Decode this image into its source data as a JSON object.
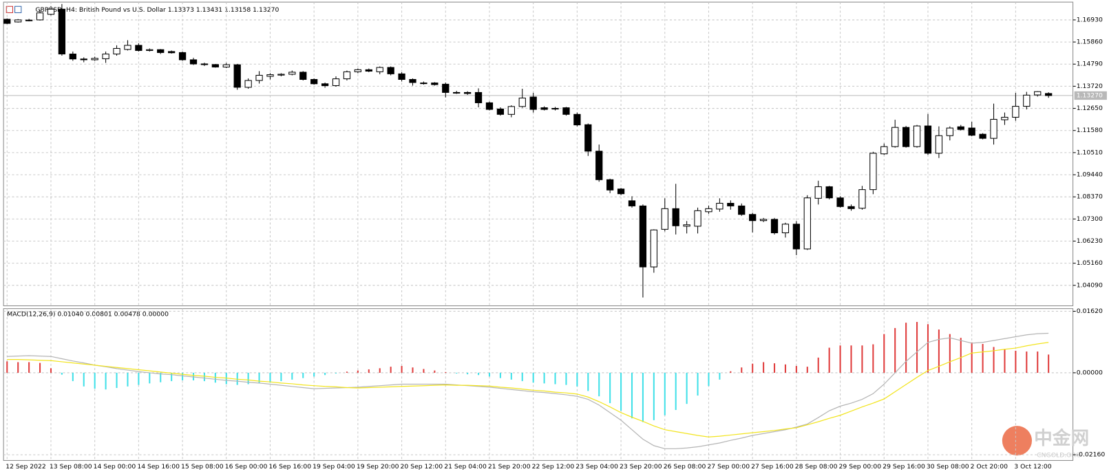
{
  "chart_data": [
    {
      "type": "candlestick",
      "title": "GBPUSD, H4:  British Pound vs U.S. Dollar  1.13373 1.13431 1.13158 1.13270",
      "categories": [
        "12 Sep 2022",
        null,
        null,
        null,
        "13 Sep 08:00",
        null,
        null,
        null,
        "14 Sep 00:00",
        null,
        null,
        null,
        "14 Sep 16:00",
        null,
        null,
        null,
        "15 Sep 08:00",
        null,
        null,
        null,
        "16 Sep 00:00",
        null,
        null,
        null,
        "16 Sep 16:00",
        null,
        null,
        null,
        "19 Sep 04:00",
        null,
        null,
        null,
        "19 Sep 20:00",
        null,
        null,
        null,
        "20 Sep 12:00",
        null,
        null,
        null,
        "21 Sep 04:00",
        null,
        null,
        null,
        "21 Sep 20:00",
        null,
        null,
        null,
        "22 Sep 12:00",
        null,
        null,
        null,
        "23 Sep 04:00",
        null,
        null,
        null,
        "23 Sep 20:00",
        null,
        null,
        null,
        "26 Sep 08:00",
        null,
        null,
        null,
        "27 Sep 00:00",
        null,
        null,
        null,
        "27 Sep 16:00",
        null,
        null,
        null,
        "28 Sep 08:00",
        null,
        null,
        null,
        "29 Sep 00:00",
        null,
        null,
        null,
        "29 Sep 16:00",
        null,
        null,
        null,
        "30 Sep 08:00",
        null,
        null,
        null,
        "2 Oct 20:00",
        null,
        null,
        null,
        "3 Oct 12:00",
        null,
        null,
        null
      ],
      "open": [
        1.1696,
        1.1683,
        1.169,
        1.1693,
        1.172,
        1.1745,
        1.1528,
        1.1504,
        1.15,
        1.1505,
        1.1528,
        1.155,
        1.157,
        1.1545,
        1.1549,
        1.154,
        1.1535,
        1.15,
        1.148,
        1.1477,
        1.1465,
        1.1476,
        1.1367,
        1.14,
        1.142,
        1.1426,
        1.143,
        1.144,
        1.1405,
        1.1384,
        1.1375,
        1.1408,
        1.1442,
        1.1452,
        1.1442,
        1.1463,
        1.1432,
        1.1405,
        1.1388,
        1.1388,
        1.1382,
        1.1342,
        1.1342,
        1.1342,
        1.1292,
        1.1262,
        1.1236,
        1.1274,
        1.132,
        1.1268,
        1.1262,
        1.1268,
        1.1236,
        1.1186,
        1.1058,
        1.092,
        1.0875,
        1.0818,
        1.0793,
        1.0498,
        1.068,
        1.078,
        1.0695,
        1.0695,
        1.0765,
        1.0778,
        1.0806,
        1.0793,
        1.0752,
        1.0722,
        1.0728,
        1.0663,
        1.0705,
        1.0585,
        1.083,
        1.0886,
        1.0832,
        1.079,
        1.0782,
        1.0872,
        1.1045,
        1.108,
        1.1173,
        1.108,
        1.118,
        1.1048,
        1.1133,
        1.1176,
        1.117,
        1.114,
        1.112,
        1.121,
        1.1222,
        1.1275,
        1.133,
        1.1337
      ],
      "high": [
        1.17,
        1.1697,
        1.1698,
        1.174,
        1.176,
        1.177,
        1.154,
        1.1512,
        1.1515,
        1.154,
        1.157,
        1.1595,
        1.158,
        1.1555,
        1.1552,
        1.1545,
        1.154,
        1.151,
        1.1486,
        1.148,
        1.1485,
        1.148,
        1.141,
        1.1445,
        1.1435,
        1.1435,
        1.1448,
        1.1445,
        1.141,
        1.139,
        1.142,
        1.1448,
        1.1458,
        1.1458,
        1.1468,
        1.1468,
        1.144,
        1.141,
        1.1395,
        1.1392,
        1.139,
        1.135,
        1.1348,
        1.1362,
        1.1298,
        1.127,
        1.128,
        1.136,
        1.134,
        1.1275,
        1.1272,
        1.1272,
        1.1245,
        1.1192,
        1.109,
        1.0925,
        1.088,
        1.084,
        1.08,
        1.068,
        1.083,
        1.09,
        1.072,
        1.0785,
        1.0795,
        1.083,
        1.082,
        1.0805,
        1.076,
        1.0735,
        1.0735,
        1.0712,
        1.072,
        1.0845,
        1.0915,
        1.089,
        1.084,
        1.08,
        1.089,
        1.1055,
        1.1095,
        1.121,
        1.118,
        1.1185,
        1.1238,
        1.1178,
        1.1178,
        1.1185,
        1.12,
        1.1145,
        1.1288,
        1.1245,
        1.134,
        1.1345,
        1.1348,
        1.1343
      ],
      "low": [
        1.1673,
        1.168,
        1.1686,
        1.169,
        1.1715,
        1.152,
        1.1495,
        1.1488,
        1.1495,
        1.1485,
        1.152,
        1.1545,
        1.154,
        1.154,
        1.1528,
        1.153,
        1.1495,
        1.1475,
        1.147,
        1.1462,
        1.146,
        1.1355,
        1.136,
        1.1385,
        1.1405,
        1.142,
        1.1425,
        1.14,
        1.138,
        1.1365,
        1.137,
        1.14,
        1.1435,
        1.144,
        1.143,
        1.1425,
        1.1395,
        1.1375,
        1.138,
        1.1375,
        1.1318,
        1.1335,
        1.133,
        1.127,
        1.1255,
        1.123,
        1.1222,
        1.1268,
        1.1245,
        1.1255,
        1.1255,
        1.123,
        1.1178,
        1.1035,
        1.091,
        1.0855,
        1.0845,
        1.0785,
        1.035,
        1.047,
        1.067,
        1.0655,
        1.066,
        1.066,
        1.0755,
        1.0765,
        1.0775,
        1.0745,
        1.0665,
        1.0715,
        1.0655,
        1.064,
        1.0555,
        1.058,
        1.08,
        1.0825,
        1.0785,
        1.077,
        1.0775,
        1.085,
        1.104,
        1.1075,
        1.1075,
        1.1075,
        1.104,
        1.1025,
        1.111,
        1.1158,
        1.113,
        1.1115,
        1.109,
        1.1185,
        1.1205,
        1.126,
        1.1322,
        1.1316
      ],
      "close": [
        1.1676,
        1.1693,
        1.1692,
        1.1727,
        1.1745,
        1.1528,
        1.1504,
        1.15,
        1.1507,
        1.1528,
        1.1555,
        1.157,
        1.1545,
        1.1549,
        1.1535,
        1.1534,
        1.15,
        1.148,
        1.1477,
        1.1465,
        1.1476,
        1.1367,
        1.14,
        1.1425,
        1.1428,
        1.143,
        1.144,
        1.1405,
        1.1384,
        1.1375,
        1.1408,
        1.1442,
        1.1452,
        1.1445,
        1.1463,
        1.1432,
        1.1405,
        1.139,
        1.1386,
        1.138,
        1.1342,
        1.134,
        1.1337,
        1.1292,
        1.126,
        1.1236,
        1.1274,
        1.1315,
        1.126,
        1.126,
        1.1265,
        1.1236,
        1.1185,
        1.1058,
        1.092,
        1.087,
        1.0852,
        1.0793,
        1.0498,
        1.0677,
        1.078,
        1.0697,
        1.0702,
        1.077,
        1.078,
        1.0806,
        1.0793,
        1.0752,
        1.0722,
        1.0728,
        1.0663,
        1.0705,
        1.0585,
        1.0832,
        1.0886,
        1.0832,
        1.079,
        1.078,
        1.0872,
        1.1048,
        1.108,
        1.1173,
        1.108,
        1.118,
        1.1048,
        1.1133,
        1.117,
        1.1163,
        1.1135,
        1.112,
        1.1212,
        1.1222,
        1.1275,
        1.1329,
        1.1346,
        1.1327
      ],
      "up_color": "#ffffff",
      "down_color": "#000000",
      "ylim": [
        1.031,
        1.1779
      ],
      "yticks": [
        {
          "value": 1.1693,
          "label": "1.16930"
        },
        {
          "value": 1.1586,
          "label": "1.15860"
        },
        {
          "value": 1.1479,
          "label": "1.14790"
        },
        {
          "value": 1.1372,
          "label": "1.13720"
        },
        {
          "value": 1.1265,
          "label": "1.12650"
        },
        {
          "value": 1.1158,
          "label": "1.11580"
        },
        {
          "value": 1.1051,
          "label": "1.10510"
        },
        {
          "value": 1.0944,
          "label": "1.09440"
        },
        {
          "value": 1.0837,
          "label": "1.08370"
        },
        {
          "value": 1.073,
          "label": "1.07300"
        },
        {
          "value": 1.0623,
          "label": "1.06230"
        },
        {
          "value": 1.0516,
          "label": "1.05160"
        },
        {
          "value": 1.0409,
          "label": "1.04090"
        }
      ],
      "last_price": {
        "value": 1.1327,
        "label": "1.13270"
      },
      "grid": true
    },
    {
      "type": "macd",
      "title": "MACD(12,26,9) 0.01040 0.00801 0.00478 0.00000",
      "series": [
        {
          "style": "histogram",
          "color": "#e03c3c",
          "negative_color": "#40e0e8",
          "values": [
            0.003,
            0.0028,
            0.0028,
            0.0026,
            0.0012,
            -0.0005,
            -0.0022,
            -0.0036,
            -0.0042,
            -0.0044,
            -0.004,
            -0.0036,
            -0.0032,
            -0.0028,
            -0.0025,
            -0.0022,
            -0.002,
            -0.002,
            -0.0022,
            -0.0026,
            -0.003,
            -0.0032,
            -0.003,
            -0.0028,
            -0.0026,
            -0.0022,
            -0.0018,
            -0.0014,
            -0.001,
            -0.0006,
            -0.0002,
            0.0003,
            0.0006,
            0.0009,
            0.0012,
            0.0016,
            0.0018,
            0.0014,
            0.001,
            0.0006,
            0.0002,
            -0.0002,
            -0.0004,
            -0.0006,
            -0.001,
            -0.0014,
            -0.0018,
            -0.0022,
            -0.0026,
            -0.0028,
            -0.003,
            -0.0032,
            -0.0036,
            -0.0048,
            -0.0062,
            -0.008,
            -0.01,
            -0.012,
            -0.013,
            -0.0125,
            -0.0112,
            -0.0098,
            -0.0082,
            -0.006,
            -0.0035,
            -0.0018,
            0.0004,
            0.0014,
            0.0024,
            0.0028,
            0.0025,
            0.0022,
            0.0018,
            0.0016,
            0.004,
            0.0066,
            0.0072,
            0.0072,
            0.0072,
            0.0075,
            0.0102,
            0.0118,
            0.0132,
            0.0134,
            0.0128,
            0.0114,
            0.0102,
            0.0092,
            0.008,
            0.0076,
            0.0068,
            0.0062,
            0.0058,
            0.0056,
            0.0056,
            0.0048
          ]
        },
        {
          "style": "line",
          "color": "#b4b4b4",
          "values": [
            0.0043,
            0.0044,
            0.0045,
            0.0044,
            0.0043,
            0.0037,
            0.0031,
            0.0026,
            0.002,
            0.0016,
            0.0011,
            0.0007,
            0.0003,
            0.0,
            -0.0003,
            -0.0005,
            -0.0008,
            -0.0011,
            -0.0014,
            -0.0017,
            -0.002,
            -0.0022,
            -0.0025,
            -0.0027,
            -0.003,
            -0.0033,
            -0.0036,
            -0.0039,
            -0.0042,
            -0.0041,
            -0.004,
            -0.0039,
            -0.0038,
            -0.0036,
            -0.0034,
            -0.0032,
            -0.003,
            -0.003,
            -0.003,
            -0.003,
            -0.003,
            -0.0032,
            -0.0034,
            -0.0036,
            -0.0038,
            -0.0041,
            -0.0044,
            -0.0047,
            -0.005,
            -0.0052,
            -0.0055,
            -0.0058,
            -0.0062,
            -0.007,
            -0.0085,
            -0.0105,
            -0.0125,
            -0.015,
            -0.0175,
            -0.0192,
            -0.02,
            -0.02,
            -0.0198,
            -0.0195,
            -0.019,
            -0.0185,
            -0.0178,
            -0.0172,
            -0.0165,
            -0.016,
            -0.0155,
            -0.015,
            -0.0143,
            -0.0135,
            -0.0118,
            -0.01,
            -0.0088,
            -0.008,
            -0.007,
            -0.0055,
            -0.003,
            0.0,
            0.003,
            0.0055,
            0.008,
            0.0088,
            0.0092,
            0.0085,
            0.0078,
            0.008,
            0.0085,
            0.009,
            0.0095,
            0.01,
            0.0103,
            0.0104
          ]
        },
        {
          "style": "line",
          "color": "#f2e41c",
          "values": [
            0.0035,
            0.0035,
            0.0034,
            0.0033,
            0.0032,
            0.0029,
            0.0026,
            0.0023,
            0.002,
            0.0017,
            0.0014,
            0.0011,
            0.0008,
            0.0005,
            0.0002,
            -0.0001,
            -0.0004,
            -0.0007,
            -0.0009,
            -0.0012,
            -0.0014,
            -0.0017,
            -0.0019,
            -0.0022,
            -0.0024,
            -0.0027,
            -0.0029,
            -0.0032,
            -0.0034,
            -0.0036,
            -0.0037,
            -0.0039,
            -0.004,
            -0.0039,
            -0.0038,
            -0.0037,
            -0.0036,
            -0.0035,
            -0.0034,
            -0.0033,
            -0.0032,
            -0.0033,
            -0.0033,
            -0.0034,
            -0.0035,
            -0.0038,
            -0.004,
            -0.0043,
            -0.0046,
            -0.0048,
            -0.0051,
            -0.0053,
            -0.0056,
            -0.0064,
            -0.0076,
            -0.009,
            -0.0105,
            -0.0117,
            -0.0128,
            -0.014,
            -0.015,
            -0.0155,
            -0.016,
            -0.0165,
            -0.0169,
            -0.0167,
            -0.0164,
            -0.0161,
            -0.0158,
            -0.0155,
            -0.0152,
            -0.0148,
            -0.0145,
            -0.0137,
            -0.0129,
            -0.012,
            -0.0112,
            -0.0101,
            -0.009,
            -0.008,
            -0.0069,
            -0.005,
            -0.0031,
            -0.0012,
            0.0006,
            0.0017,
            0.0029,
            0.004,
            0.0052,
            0.0055,
            0.0058,
            0.0062,
            0.0065,
            0.0071,
            0.0076,
            0.008
          ]
        }
      ],
      "ylim": [
        -0.0231,
        0.0169
      ],
      "yticks": [
        {
          "value": 0.0162,
          "label": "0.01620"
        },
        {
          "value": 0,
          "label": "0.00000"
        },
        {
          "value": -0.0216,
          "label": "-0.02160"
        }
      ],
      "grid": true
    }
  ],
  "watermark": {
    "name": "中金网",
    "site": "CNGOLD.ORG"
  }
}
